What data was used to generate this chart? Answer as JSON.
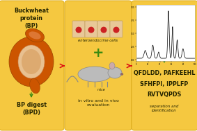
{
  "bg_color": "#FFFFFF",
  "panel_color": "#F5C840",
  "panel_edge_color": "#E0B020",
  "arrow_color": "#DD1111",
  "green_arrow_color": "#3A8A10",
  "panel1_title": "Buckwheat\nprotein\n(BP)",
  "panel1_bottom": "BP digest\n(BPD)",
  "panel2_top": "enteroendocrine cells",
  "panel2_plus": "+",
  "panel2_mice": "mice",
  "panel2_bottom": "in vitro and in vivo\nevaluation",
  "panel3_peptides": [
    "QFDLDD, PAFKEEHL",
    "SFHFPI, IPPLFP",
    "RVTVQPDS"
  ],
  "panel3_bottom": "separation and\nidentification",
  "text_color": "#222200",
  "title_fontsize": 5.8,
  "label_fontsize": 4.5,
  "peptide_fontsize": 5.8
}
